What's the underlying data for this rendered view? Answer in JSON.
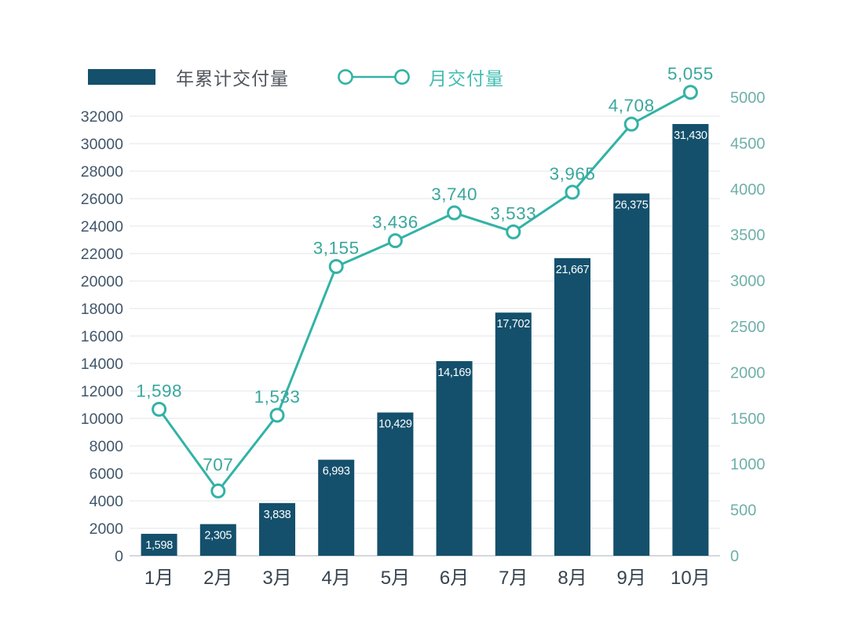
{
  "legend": {
    "bar": {
      "label": "年累计交付量"
    },
    "line": {
      "label": "月交付量"
    }
  },
  "colors": {
    "background": "#ffffff",
    "bar_fill": "#14506c",
    "line_stroke": "#32b3a6",
    "marker_fill": "#ffffff",
    "line_value_label": "#3aa79d",
    "bar_value_label": "#ffffff",
    "left_tick": "#40566a",
    "right_tick": "#6fb0a9",
    "month_label": "#36434f",
    "gridline": "#e2e5e7",
    "baseline": "#c6cbcf",
    "legend_text_dark": "#4f555c",
    "legend_text_teal": "#43bcb0"
  },
  "chart_data": {
    "type": "bar",
    "subtype": "combo-bar-line",
    "title": "",
    "categories": [
      "1月",
      "2月",
      "3月",
      "4月",
      "5月",
      "6月",
      "7月",
      "8月",
      "9月",
      "10月"
    ],
    "series": [
      {
        "name": "年累计交付量",
        "type": "bar",
        "y_axis": "left",
        "values": [
          1598,
          2305,
          3838,
          6993,
          10429,
          14169,
          17702,
          21667,
          26375,
          31430
        ]
      },
      {
        "name": "月交付量",
        "type": "line",
        "y_axis": "right",
        "values": [
          1598,
          707,
          1533,
          3155,
          3436,
          3740,
          3533,
          3965,
          4708,
          5055
        ]
      }
    ],
    "left_axis": {
      "min": 0,
      "max": 32000,
      "step": 2000
    },
    "right_axis": {
      "min": 0,
      "max": 5000,
      "step": 500
    },
    "grid": true,
    "legend_position": "top",
    "value_labels": "on"
  }
}
